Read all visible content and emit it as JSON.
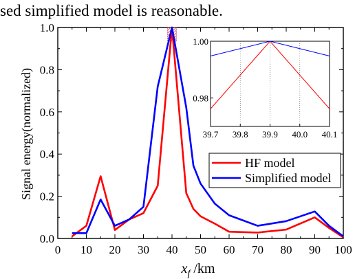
{
  "caption_text": "sed simplified model is reasonable.",
  "colors": {
    "hf": "#ff0000",
    "simplified": "#0000ff",
    "axis": "#000000",
    "grid": "#555555"
  },
  "chart_data": [
    {
      "type": "line",
      "xlabel": "x_f /km",
      "xlabel_main": "x",
      "xlabel_sub": "f",
      "xlabel_unit": " /km",
      "ylabel": "Signal energy(normalized)",
      "xlim": [
        0,
        100
      ],
      "ylim": [
        0,
        1.0
      ],
      "xticks": [
        0,
        10,
        20,
        30,
        40,
        50,
        60,
        70,
        80,
        90,
        100
      ],
      "xtick_labels": [
        "0",
        "10",
        "20",
        "30",
        "40",
        "50",
        "60",
        "70",
        "80",
        "90",
        "100"
      ],
      "yticks": [
        0,
        0.2,
        0.4,
        0.6,
        0.8,
        1.0
      ],
      "ytick_labels": [
        "0.0",
        "0.2",
        "0.4",
        "0.6",
        "0.8",
        "1.0"
      ],
      "grid": false,
      "legend_position": "bottom-right",
      "series": [
        {
          "name": "HF model",
          "color": "#ff0000",
          "x": [
            5,
            10,
            15,
            20,
            25,
            30,
            35,
            40,
            45,
            47.5,
            50,
            55,
            60,
            70,
            80,
            90,
            95,
            100
          ],
          "y": [
            0.01,
            0.06,
            0.295,
            0.04,
            0.09,
            0.12,
            0.25,
            1.0,
            0.215,
            0.14,
            0.105,
            0.07,
            0.032,
            0.028,
            0.042,
            0.1,
            0.05,
            0.005
          ]
        },
        {
          "name": "Simplified model",
          "color": "#0000ff",
          "x": [
            5,
            10,
            15,
            20,
            25,
            30,
            35,
            40,
            45,
            47.5,
            50,
            55,
            60,
            70,
            80,
            90,
            95,
            100
          ],
          "y": [
            0.025,
            0.025,
            0.185,
            0.06,
            0.09,
            0.15,
            0.72,
            1.0,
            0.62,
            0.345,
            0.26,
            0.165,
            0.11,
            0.06,
            0.082,
            0.128,
            0.06,
            0.01
          ]
        }
      ],
      "highlight_box": {
        "x": [
          38.5,
          41.5
        ],
        "y": [
          0.935,
          1.0
        ]
      }
    },
    {
      "type": "line",
      "title": "",
      "xlim": [
        39.7,
        40.1
      ],
      "ylim": [
        0.97,
        1.0
      ],
      "xticks": [
        39.7,
        39.8,
        39.9,
        40.0,
        40.1
      ],
      "xtick_labels": [
        "39.7",
        "39.8",
        "39.9",
        "40.0",
        "40.1"
      ],
      "yticks": [
        0.98,
        1.0
      ],
      "ytick_labels": [
        "0.98",
        "1.00"
      ],
      "grid": "vertical dotted",
      "series": [
        {
          "name": "HF model",
          "color": "#ff0000",
          "x": [
            39.7,
            39.9,
            40.1
          ],
          "y": [
            0.9762,
            1.0,
            0.9762
          ]
        },
        {
          "name": "Simplified model",
          "color": "#0000ff",
          "x": [
            39.7,
            39.9,
            40.1
          ],
          "y": [
            0.9948,
            1.0,
            0.9948
          ]
        }
      ]
    }
  ]
}
